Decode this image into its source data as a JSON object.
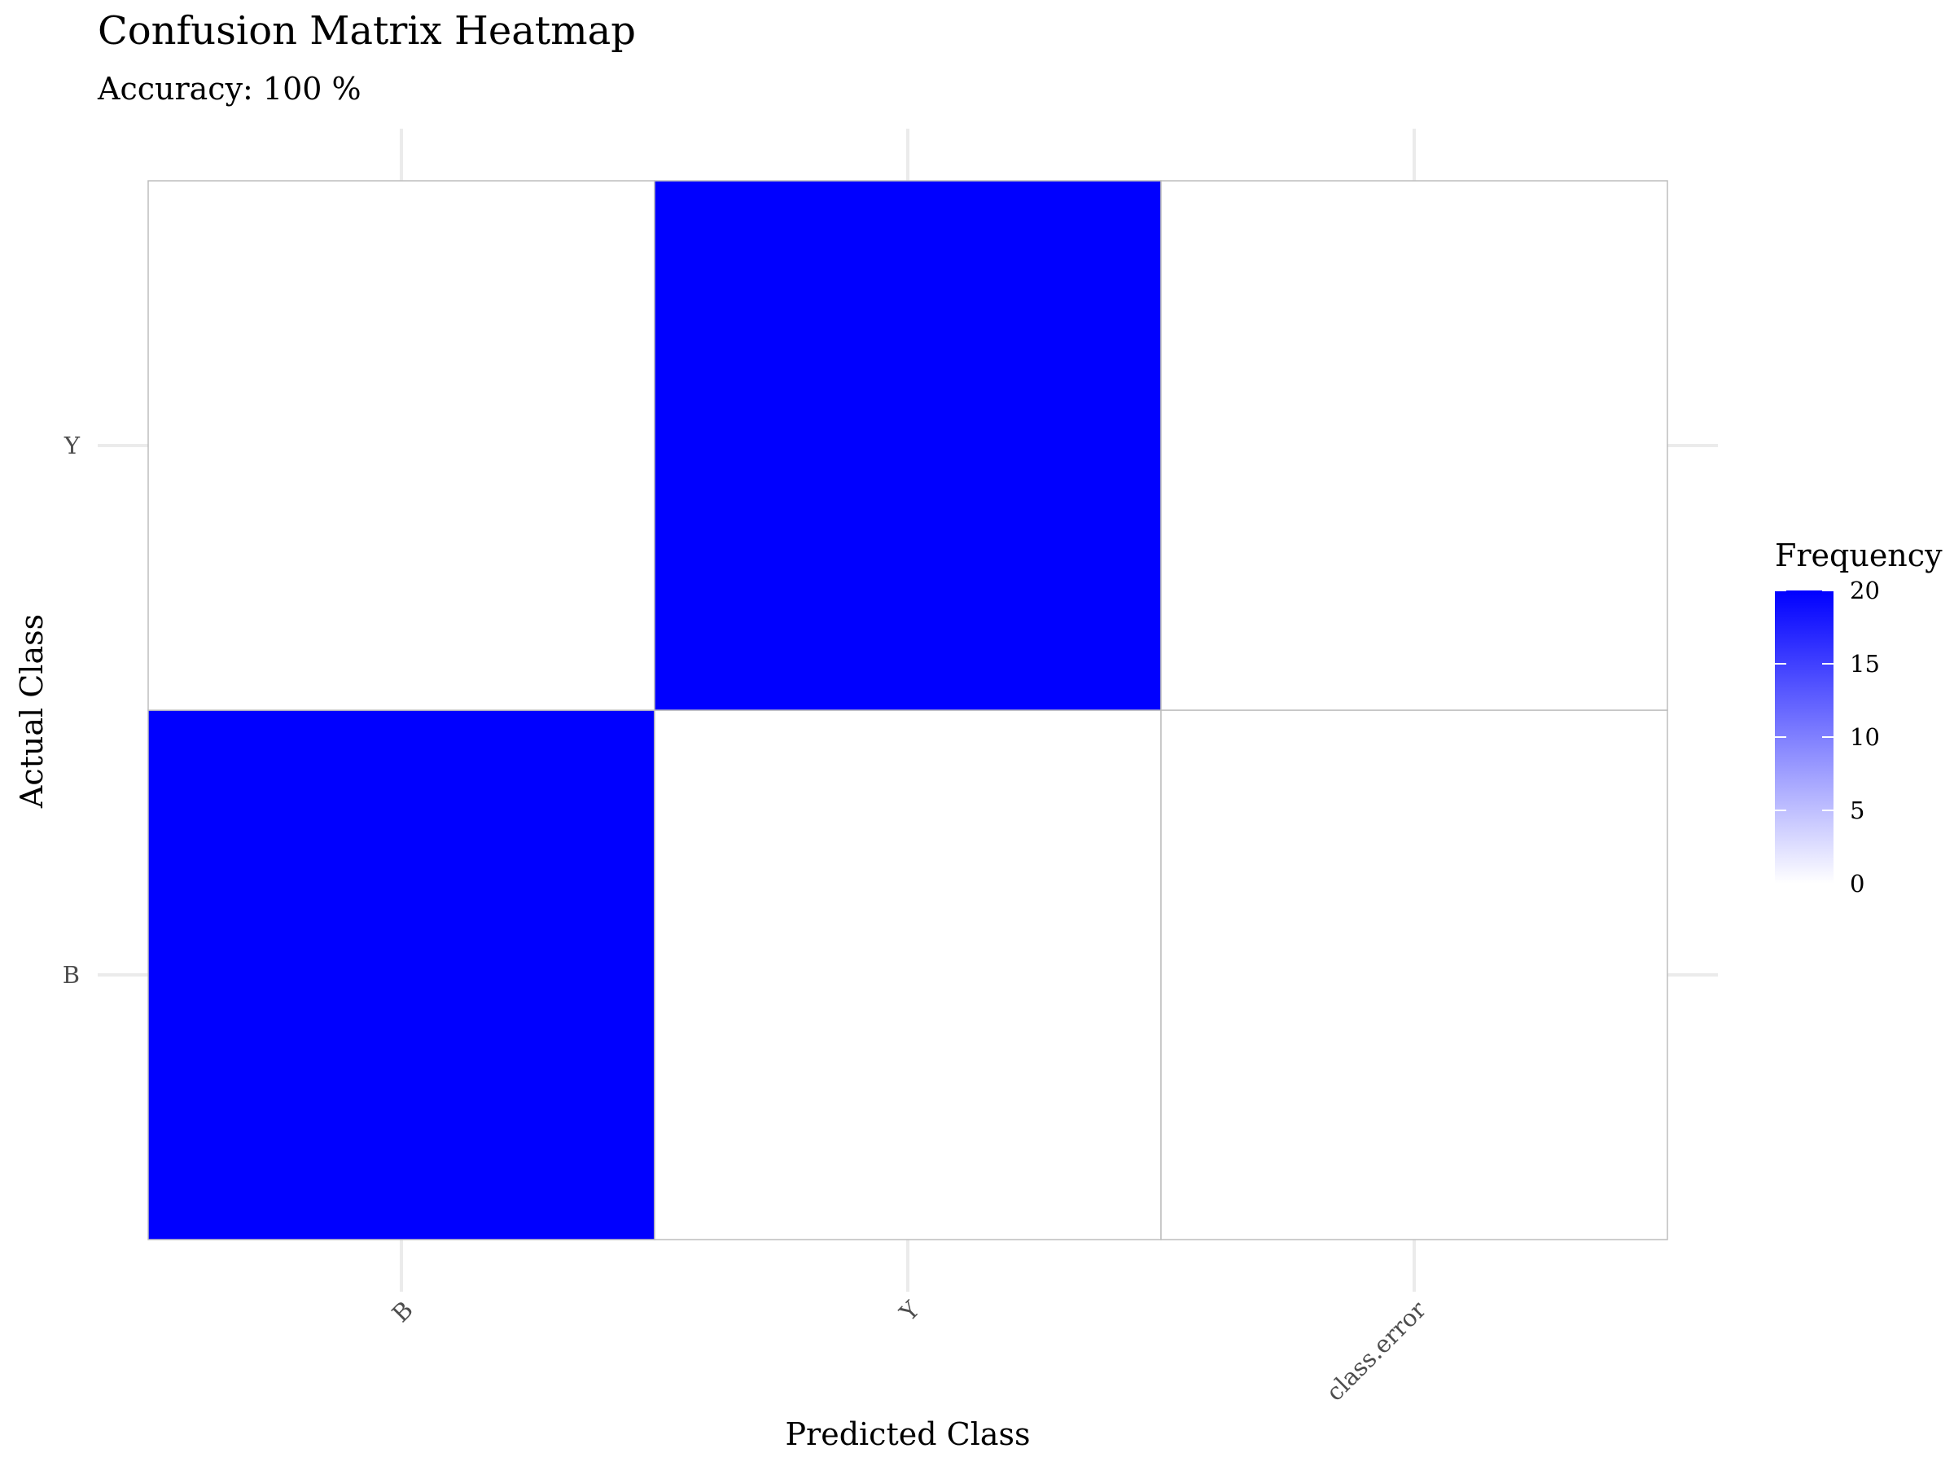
{
  "chart_data": {
    "type": "heatmap",
    "title": "Confusion Matrix Heatmap",
    "subtitle": "Accuracy: 100 %",
    "xlabel": "Predicted Class",
    "ylabel": "Actual Class",
    "x_categories": [
      "B",
      "Y",
      "class.error"
    ],
    "y_categories": [
      "B",
      "Y"
    ],
    "cells": [
      {
        "actual": "B",
        "predicted": "B",
        "value": 20
      },
      {
        "actual": "B",
        "predicted": "Y",
        "value": 0
      },
      {
        "actual": "B",
        "predicted": "class.error",
        "value": 0
      },
      {
        "actual": "Y",
        "predicted": "B",
        "value": 0
      },
      {
        "actual": "Y",
        "predicted": "Y",
        "value": 20
      },
      {
        "actual": "Y",
        "predicted": "class.error",
        "value": 0
      }
    ],
    "legend": {
      "title": "Frequency",
      "position": "right",
      "range": [
        0,
        20
      ],
      "ticks": [
        0,
        5,
        10,
        15,
        20
      ],
      "low_color": "#ffffff",
      "high_color": "#0000ff"
    },
    "grid": true
  }
}
